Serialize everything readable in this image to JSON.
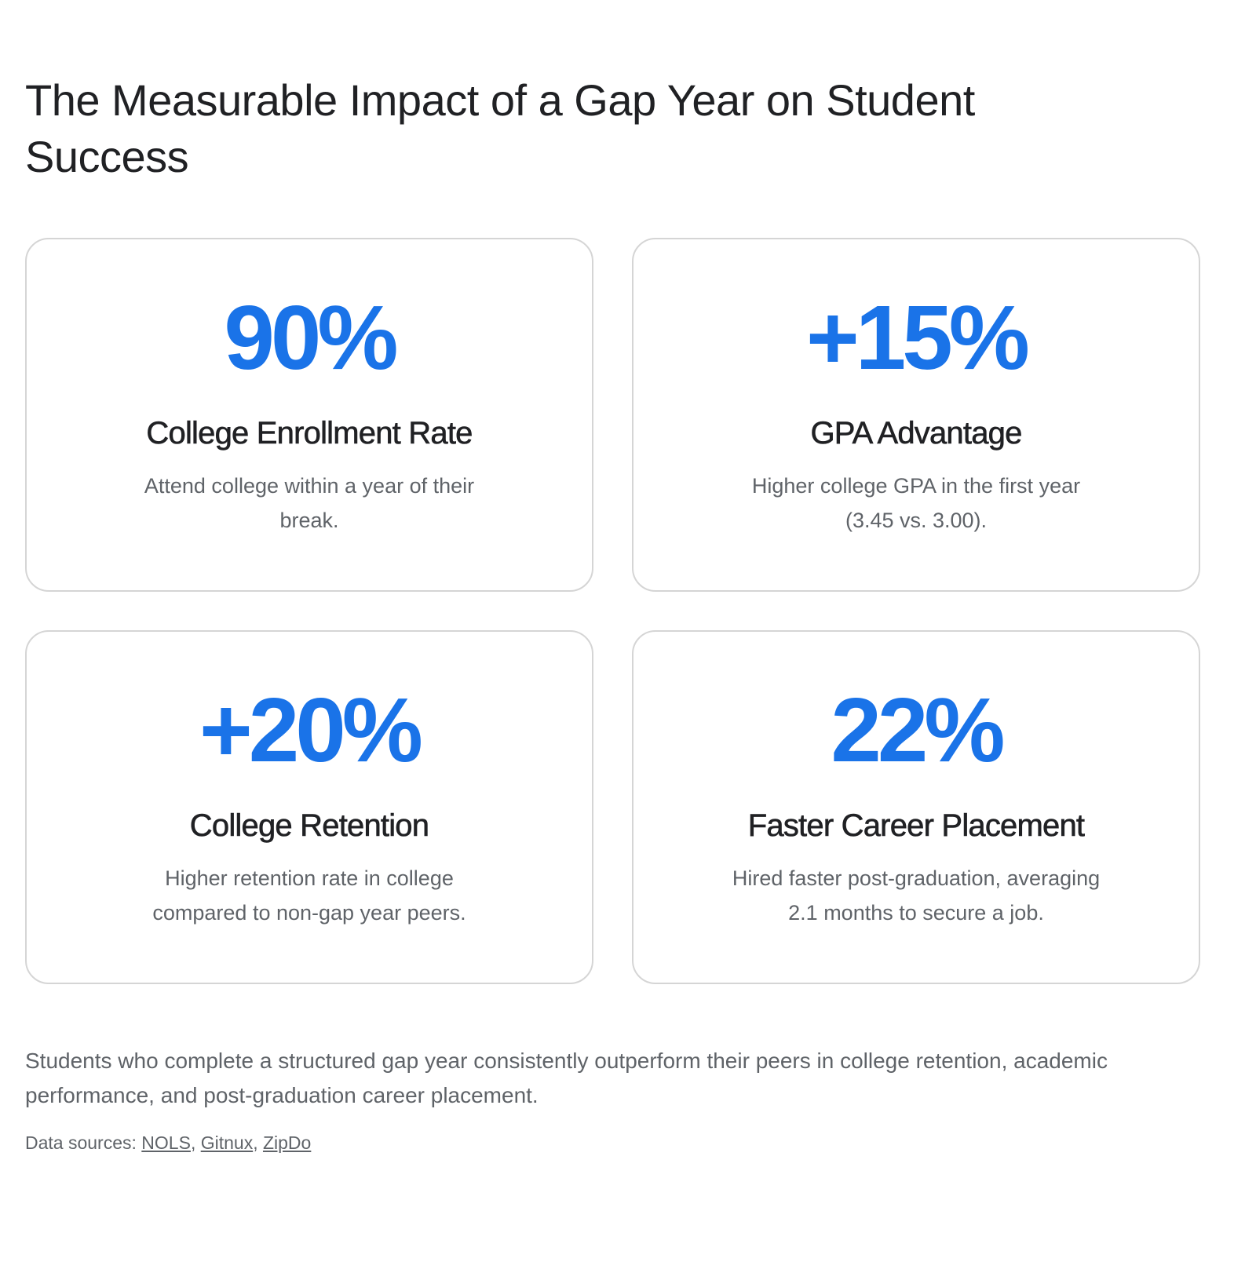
{
  "header": {
    "title": "The Measurable Impact of a Gap Year on Student Success"
  },
  "cards": [
    {
      "stat": "90%",
      "label": "College Enrollment Rate",
      "description": "Attend college within a year of their break."
    },
    {
      "stat": "+15%",
      "label": "GPA Advantage",
      "description": "Higher college GPA in the first year (3.45 vs. 3.00)."
    },
    {
      "stat": "+20%",
      "label": "College Retention",
      "description": "Higher retention rate in college compared to non-gap year peers."
    },
    {
      "stat": "22%",
      "label": "Faster Career Placement",
      "description": "Hired faster post-graduation, averaging 2.1 months to secure a job."
    }
  ],
  "summary": "Students who complete a structured gap year consistently outperform their peers in college retention, academic performance, and post-graduation career placement.",
  "sources": {
    "label": "Data sources:",
    "separator": ",",
    "links": [
      "NOLS",
      "Gitnux",
      "ZipDo"
    ]
  }
}
